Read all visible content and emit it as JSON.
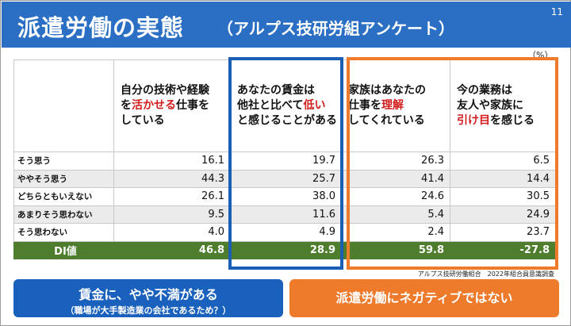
{
  "header": {
    "title": "派遣労働の実態",
    "subtitle": "（アルプス技研労組アンケート）",
    "page_number": "11"
  },
  "unit_label": "（%）",
  "columns": [
    {
      "parts": [
        {
          "t": "自分の技術や経験",
          "br": true
        },
        {
          "t": "を"
        },
        {
          "t": "活かせる",
          "red": true
        },
        {
          "t": "仕事を",
          "br": true
        },
        {
          "t": "している"
        }
      ]
    },
    {
      "parts": [
        {
          "t": "あなたの賃金は",
          "br": true
        },
        {
          "t": "他社と比べて"
        },
        {
          "t": "低い",
          "red": true,
          "br": true
        },
        {
          "t": "と感じることがある"
        }
      ]
    },
    {
      "parts": [
        {
          "t": "家族はあなたの",
          "br": true
        },
        {
          "t": "仕事を"
        },
        {
          "t": "理解",
          "red": true,
          "br": true
        },
        {
          "t": "してくれている"
        }
      ]
    },
    {
      "parts": [
        {
          "t": "今の業務は",
          "br": true
        },
        {
          "t": "友人や家族に",
          "br": true
        },
        {
          "t": "引け目",
          "red": true
        },
        {
          "t": "を感じる"
        }
      ]
    }
  ],
  "rows": [
    {
      "label": "そう思う",
      "values": [
        "16.1",
        "19.7",
        "26.3",
        "6.5"
      ]
    },
    {
      "label": "ややそう思う",
      "values": [
        "44.3",
        "25.7",
        "41.4",
        "14.4"
      ]
    },
    {
      "label": "どちらともいえない",
      "values": [
        "26.1",
        "38.0",
        "24.6",
        "30.5"
      ]
    },
    {
      "label": "あまりそう思わない",
      "values": [
        "9.5",
        "11.6",
        "5.4",
        "24.9"
      ]
    },
    {
      "label": "そう思わない",
      "values": [
        "4.0",
        "4.9",
        "2.4",
        "23.7"
      ]
    }
  ],
  "di_row": {
    "label": "DI値",
    "values": [
      "46.8",
      "28.9",
      "59.8",
      "-27.8"
    ]
  },
  "source": "アルプス技研労働組合　2022年組合員意識調査",
  "conclusions": {
    "blue_line1": "賃金に、やや不満がある",
    "blue_line2": "（職場が大手製造業の会社であるため？）",
    "orange": "派遣労働にネガティブではない"
  },
  "colors": {
    "header": "#2a6fc4",
    "accent_blue": "#1a5fb4",
    "accent_orange": "#ee7a2c",
    "di_green": "#4e7d2e",
    "highlight_red": "#d21c1c"
  }
}
